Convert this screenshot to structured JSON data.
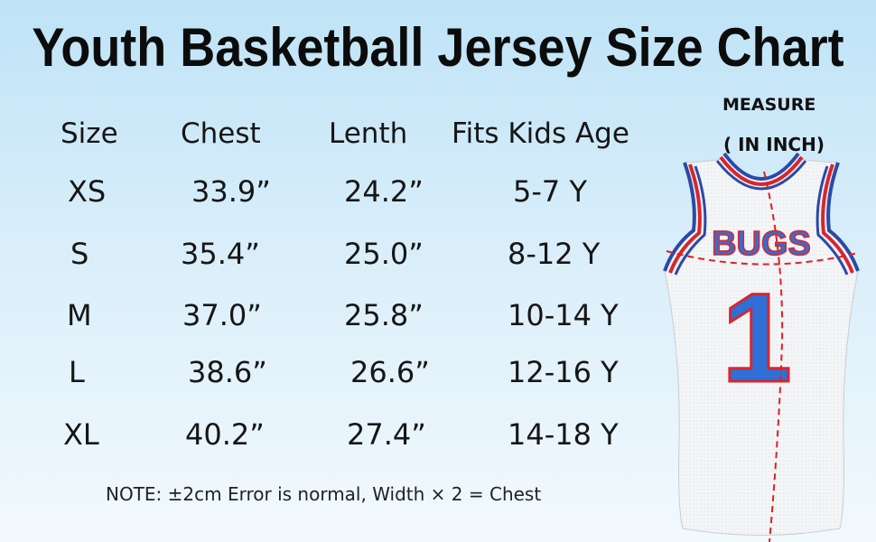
{
  "title": "Youth Basketball Jersey Size Chart",
  "measure": {
    "line1": "MEASURE",
    "line2": "( IN INCH)"
  },
  "table": {
    "headers": [
      "Size",
      "Chest",
      "Lenth",
      "Fits Kids Age"
    ],
    "rows": [
      [
        "XS",
        "33.9”",
        "24.2”",
        "5-7 Y"
      ],
      [
        "S",
        "35.4”",
        "25.0”",
        "8-12 Y"
      ],
      [
        "M",
        "37.0”",
        "25.8”",
        "10-14 Y"
      ],
      [
        "L",
        "38.6”",
        "26.6”",
        "12-16 Y"
      ],
      [
        "XL",
        "40.2”",
        "27.4”",
        "14-18 Y"
      ]
    ]
  },
  "note": "NOTE: ±2cm Error is normal, Width × 2 = Chest",
  "jersey": {
    "name": "BUGS",
    "number": "1",
    "body_color": "#f4f5f7",
    "trim_red": "#d8262e",
    "trim_blue": "#2a4aa8",
    "number_blue": "#2f6fd6"
  }
}
